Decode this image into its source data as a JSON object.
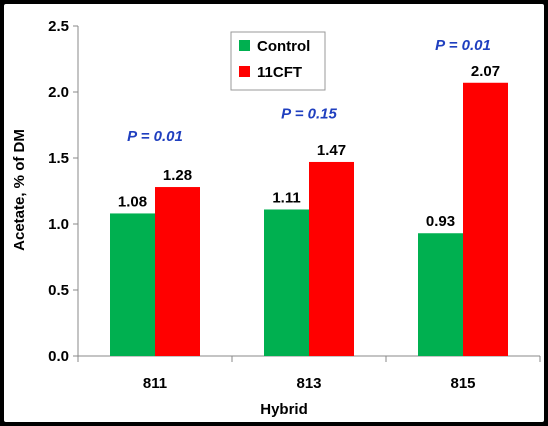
{
  "chart_data": {
    "type": "bar",
    "xlabel": "Hybrid",
    "ylabel": "Acetate, % of DM",
    "categories": [
      "811",
      "813",
      "815"
    ],
    "ylim": [
      0,
      2.5
    ],
    "yticks": [
      "0.0",
      "0.5",
      "1.0",
      "1.5",
      "2.0",
      "2.5"
    ],
    "series": [
      {
        "name": "Control",
        "color": "#00b050",
        "values": [
          1.08,
          1.11,
          0.93
        ],
        "labels": [
          "1.08",
          "1.11",
          "0.93"
        ]
      },
      {
        "name": "11CFT",
        "color": "#ff0000",
        "values": [
          1.28,
          1.47,
          2.07
        ],
        "labels": [
          "1.28",
          "1.47",
          "2.07"
        ]
      }
    ],
    "annotations": [
      {
        "category": "811",
        "text": "P = 0.01",
        "y": 1.63
      },
      {
        "category": "813",
        "text": "P = 0.15",
        "y": 1.8
      },
      {
        "category": "815",
        "text": "P = 0.01",
        "y": 2.32
      }
    ],
    "grid": false,
    "legend_position": "top-center"
  }
}
